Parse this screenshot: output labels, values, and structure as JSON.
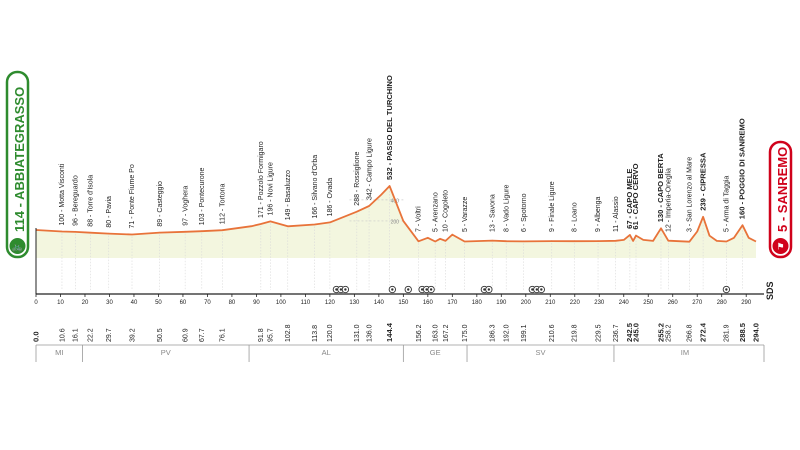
{
  "start": {
    "name": "ABBIATEGRASSO",
    "altitude": "114"
  },
  "finish": {
    "name": "SANREMO",
    "altitude": "5"
  },
  "colors": {
    "start_box": "#2e8b2e",
    "finish_box": "#d0021b",
    "profile_line": "#e8733a",
    "profile_fill": "#f3f6df",
    "axis": "#222222",
    "region_text": "#888888"
  },
  "places": [
    {
      "alt": "100",
      "name": "Motta Visconti",
      "km": 10.6,
      "bold": false
    },
    {
      "alt": "96",
      "name": "Bereguardo",
      "km": 16.1,
      "bold": false
    },
    {
      "alt": "88",
      "name": "Torre d'Isola",
      "km": 22.2,
      "bold": false
    },
    {
      "alt": "80",
      "name": "Pavia",
      "km": 29.7,
      "bold": false
    },
    {
      "alt": "71",
      "name": "Ponte Fiume Po",
      "km": 39.2,
      "bold": false
    },
    {
      "alt": "89",
      "name": "Casteggio",
      "km": 50.5,
      "bold": false
    },
    {
      "alt": "97",
      "name": "Voghera",
      "km": 60.9,
      "bold": false
    },
    {
      "alt": "103",
      "name": "Pontecurone",
      "km": 67.7,
      "bold": false
    },
    {
      "alt": "112",
      "name": "Tortona",
      "km": 76.1,
      "bold": false
    },
    {
      "alt": "171",
      "name": "Pozzolo Formigaro",
      "km": 91.8,
      "bold": false
    },
    {
      "alt": "196",
      "name": "Novi Ligure",
      "km": 95.7,
      "bold": false
    },
    {
      "alt": "149",
      "name": "Basaluzzo",
      "km": 102.8,
      "bold": false
    },
    {
      "alt": "166",
      "name": "Silvano d'Orba",
      "km": 113.8,
      "bold": false
    },
    {
      "alt": "186",
      "name": "Ovada",
      "km": 120.0,
      "bold": false
    },
    {
      "alt": "288",
      "name": "Rossiglione",
      "km": 131.0,
      "bold": false
    },
    {
      "alt": "342",
      "name": "Campo Ligure",
      "km": 136.0,
      "bold": false
    },
    {
      "alt": "532",
      "name": "PASSO DEL TURCHINO",
      "km": 144.4,
      "bold": true
    },
    {
      "alt": "7",
      "name": "Voltri",
      "km": 156.2,
      "bold": false
    },
    {
      "alt": "5",
      "name": "Arenzano",
      "km": 163.0,
      "bold": false
    },
    {
      "alt": "10",
      "name": "Cogoleto",
      "km": 167.2,
      "bold": false
    },
    {
      "alt": "5",
      "name": "Varazze",
      "km": 175.0,
      "bold": false
    },
    {
      "alt": "13",
      "name": "Savona",
      "km": 186.3,
      "bold": false
    },
    {
      "alt": "8",
      "name": "Vado Ligure",
      "km": 192.0,
      "bold": false
    },
    {
      "alt": "6",
      "name": "Spotorno",
      "km": 199.1,
      "bold": false
    },
    {
      "alt": "9",
      "name": "Finale Ligure",
      "km": 210.6,
      "bold": false
    },
    {
      "alt": "8",
      "name": "Loano",
      "km": 219.8,
      "bold": false
    },
    {
      "alt": "9",
      "name": "Albenga",
      "km": 229.5,
      "bold": false
    },
    {
      "alt": "11",
      "name": "Alassio",
      "km": 236.7,
      "bold": false
    },
    {
      "alt": "67",
      "name": "CAPO MELE",
      "km": 242.5,
      "bold": true
    },
    {
      "alt": "61",
      "name": "CAPO CERVO",
      "km": 245.0,
      "bold": true
    },
    {
      "alt": "130",
      "name": "CAPO BERTA",
      "km": 255.2,
      "bold": true
    },
    {
      "alt": "12",
      "name": "Imperia-Oneglia",
      "km": 258.2,
      "bold": false
    },
    {
      "alt": "3",
      "name": "San Lorenzo al Mare",
      "km": 266.8,
      "bold": false
    },
    {
      "alt": "239",
      "name": "CIPRESSA",
      "km": 272.4,
      "bold": true
    },
    {
      "alt": "5",
      "name": "Arma di Taggia",
      "km": 281.9,
      "bold": false
    },
    {
      "alt": "160",
      "name": "POGGIO DI SANREMO",
      "km": 288.5,
      "bold": true
    }
  ],
  "km_labels": [
    {
      "text": "0.0",
      "km": 0,
      "bold": true
    },
    {
      "text": "10.6",
      "km": 10.6,
      "bold": false
    },
    {
      "text": "16.1",
      "km": 16.1,
      "bold": false
    },
    {
      "text": "22.2",
      "km": 22.2,
      "bold": false
    },
    {
      "text": "29.7",
      "km": 29.7,
      "bold": false
    },
    {
      "text": "39.2",
      "km": 39.2,
      "bold": false
    },
    {
      "text": "50.5",
      "km": 50.5,
      "bold": false
    },
    {
      "text": "60.9",
      "km": 60.9,
      "bold": false
    },
    {
      "text": "67.7",
      "km": 67.7,
      "bold": false
    },
    {
      "text": "76.1",
      "km": 76.1,
      "bold": false
    },
    {
      "text": "91.8",
      "km": 91.8,
      "bold": false
    },
    {
      "text": "95.7",
      "km": 95.7,
      "bold": false
    },
    {
      "text": "102.8",
      "km": 102.8,
      "bold": false
    },
    {
      "text": "113.8",
      "km": 113.8,
      "bold": false
    },
    {
      "text": "120.0",
      "km": 120.0,
      "bold": false
    },
    {
      "text": "131.0",
      "km": 131.0,
      "bold": false
    },
    {
      "text": "136.0",
      "km": 136.0,
      "bold": false
    },
    {
      "text": "144.4",
      "km": 144.4,
      "bold": true
    },
    {
      "text": "156.2",
      "km": 156.2,
      "bold": false
    },
    {
      "text": "163.0",
      "km": 163.0,
      "bold": false
    },
    {
      "text": "167.2",
      "km": 167.2,
      "bold": false
    },
    {
      "text": "175.0",
      "km": 175.0,
      "bold": false
    },
    {
      "text": "186.3",
      "km": 186.3,
      "bold": false
    },
    {
      "text": "192.0",
      "km": 192.0,
      "bold": false
    },
    {
      "text": "199.1",
      "km": 199.1,
      "bold": false
    },
    {
      "text": "210.6",
      "km": 210.6,
      "bold": false
    },
    {
      "text": "219.8",
      "km": 219.8,
      "bold": false
    },
    {
      "text": "229.5",
      "km": 229.5,
      "bold": false
    },
    {
      "text": "236.7",
      "km": 236.7,
      "bold": false
    },
    {
      "text": "242.5",
      "km": 242.5,
      "bold": true
    },
    {
      "text": "245.0",
      "km": 245.0,
      "bold": true
    },
    {
      "text": "255.2",
      "km": 255.2,
      "bold": true
    },
    {
      "text": "258.2",
      "km": 258.2,
      "bold": false
    },
    {
      "text": "266.8",
      "km": 266.8,
      "bold": false
    },
    {
      "text": "272.4",
      "km": 272.4,
      "bold": true
    },
    {
      "text": "281.9",
      "km": 281.9,
      "bold": false
    },
    {
      "text": "288.5",
      "km": 288.5,
      "bold": true
    },
    {
      "text": "294.0",
      "km": 294.0,
      "bold": true
    }
  ],
  "axis_ticks": [
    "0",
    "10",
    "20",
    "30",
    "40",
    "50",
    "60",
    "70",
    "80",
    "90",
    "100",
    "110",
    "120",
    "130",
    "140",
    "150",
    "160",
    "170",
    "180",
    "190",
    "200",
    "210",
    "220",
    "230",
    "240",
    "250",
    "260",
    "270",
    "280",
    "290"
  ],
  "alt_scale": [
    "200",
    "400"
  ],
  "regions": [
    {
      "code": "MI",
      "from": 0,
      "to": 19
    },
    {
      "code": "PV",
      "from": 19,
      "to": 87
    },
    {
      "code": "AL",
      "from": 87,
      "to": 150
    },
    {
      "code": "GE",
      "from": 150,
      "to": 176
    },
    {
      "code": "SV",
      "from": 176,
      "to": 236
    },
    {
      "code": "IM",
      "from": 236,
      "to": 294
    }
  ],
  "sprint_markers": [
    {
      "km": 124.5,
      "count": 3
    },
    {
      "km": 145.5,
      "count": 1
    },
    {
      "km": 152.0,
      "count": 1
    },
    {
      "km": 159.5,
      "count": 3
    },
    {
      "km": 184.0,
      "count": 2
    },
    {
      "km": 204.5,
      "count": 3
    },
    {
      "km": 281.9,
      "count": 1
    }
  ],
  "brand": "SDS",
  "chart_data": {
    "type": "area",
    "x_unit": "km",
    "y_unit": "m",
    "x_range": [
      0,
      294
    ],
    "profile": [
      [
        0,
        114
      ],
      [
        10.6,
        100
      ],
      [
        16.1,
        96
      ],
      [
        22.2,
        88
      ],
      [
        29.7,
        80
      ],
      [
        39.2,
        71
      ],
      [
        50.5,
        89
      ],
      [
        60.9,
        97
      ],
      [
        67.7,
        103
      ],
      [
        76.1,
        112
      ],
      [
        88,
        150
      ],
      [
        91.8,
        171
      ],
      [
        95.7,
        196
      ],
      [
        102.8,
        149
      ],
      [
        113.8,
        166
      ],
      [
        120.0,
        186
      ],
      [
        131.0,
        288
      ],
      [
        136.0,
        342
      ],
      [
        141,
        450
      ],
      [
        144.4,
        532
      ],
      [
        150,
        200
      ],
      [
        156.2,
        7
      ],
      [
        160,
        40
      ],
      [
        163.0,
        5
      ],
      [
        165,
        30
      ],
      [
        167.2,
        10
      ],
      [
        170,
        70
      ],
      [
        175.0,
        5
      ],
      [
        186.3,
        13
      ],
      [
        192.0,
        8
      ],
      [
        199.1,
        6
      ],
      [
        210.6,
        9
      ],
      [
        219.8,
        8
      ],
      [
        229.5,
        9
      ],
      [
        236.7,
        11
      ],
      [
        240,
        20
      ],
      [
        242.5,
        67
      ],
      [
        243.8,
        10
      ],
      [
        245.0,
        61
      ],
      [
        248,
        20
      ],
      [
        252,
        10
      ],
      [
        255.2,
        130
      ],
      [
        258.2,
        12
      ],
      [
        266.8,
        3
      ],
      [
        270,
        100
      ],
      [
        272.4,
        239
      ],
      [
        275,
        60
      ],
      [
        278,
        10
      ],
      [
        281.9,
        5
      ],
      [
        285,
        40
      ],
      [
        288.5,
        160
      ],
      [
        291,
        40
      ],
      [
        294,
        5
      ]
    ]
  }
}
